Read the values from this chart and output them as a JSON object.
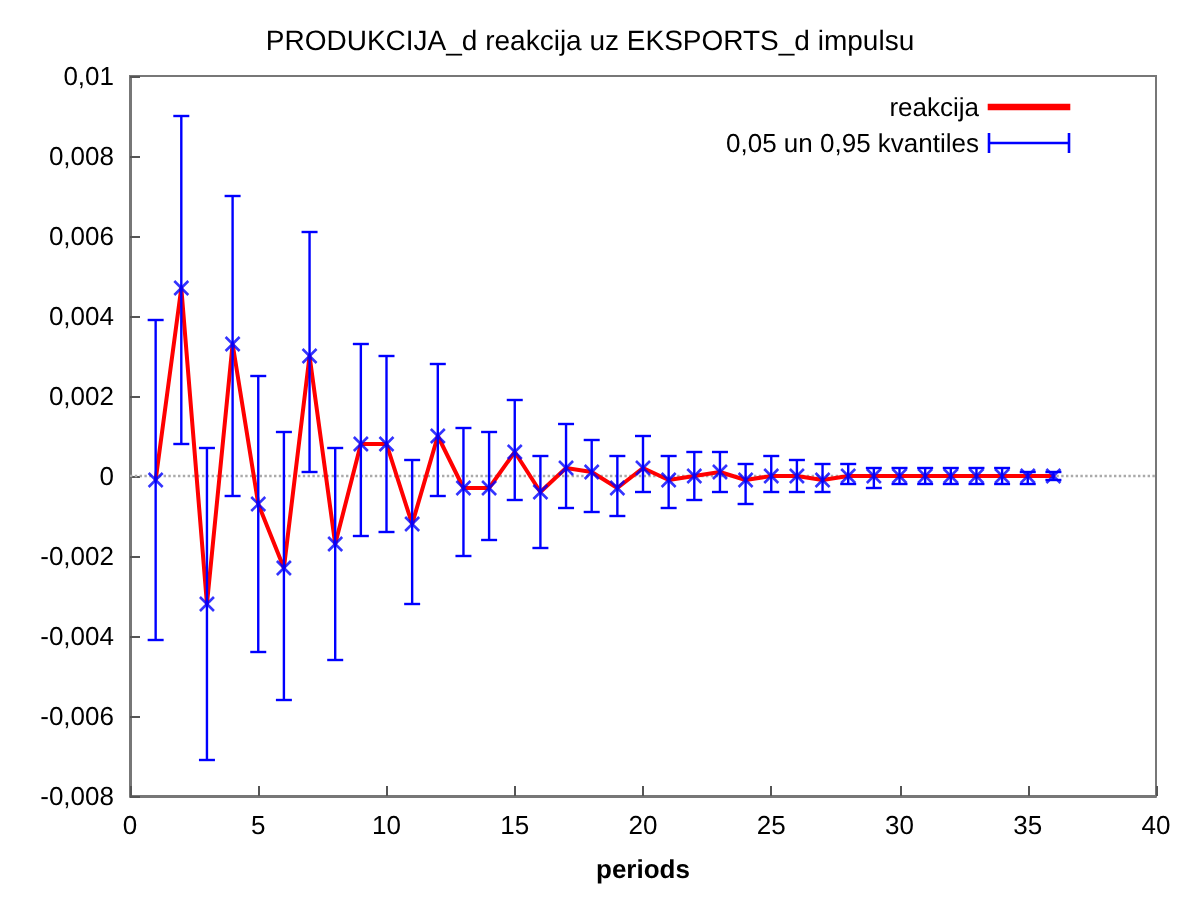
{
  "chart_data": {
    "type": "line",
    "title": "PRODUKCIJA_d reakcija uz EKSPORTS_d impulsu",
    "xlabel": "periods",
    "x": [
      1,
      2,
      3,
      4,
      5,
      6,
      7,
      8,
      9,
      10,
      11,
      12,
      13,
      14,
      15,
      16,
      17,
      18,
      19,
      20,
      21,
      22,
      23,
      24,
      25,
      26,
      27,
      28,
      29,
      30,
      31,
      32,
      33,
      34,
      35,
      36
    ],
    "series": [
      {
        "name": "reakcija",
        "color": "#ff0000",
        "values": [
          -0.0001,
          0.0047,
          -0.0032,
          0.0033,
          -0.0007,
          -0.0023,
          0.003,
          -0.0017,
          0.0008,
          0.0008,
          -0.0012,
          0.001,
          -0.0003,
          -0.0003,
          0.0006,
          -0.0004,
          0.0002,
          0.0001,
          -0.0003,
          0.0002,
          -0.0001,
          0,
          0.0001,
          -0.0001,
          0,
          0,
          -0.0001,
          0,
          0,
          0,
          0,
          0,
          0,
          0,
          0,
          0
        ]
      },
      {
        "name": "0,05 un 0,95 kvantiles",
        "type": "scatter",
        "marker": "cross",
        "color": "#0000ff",
        "values": [
          -0.0001,
          0.0047,
          -0.0032,
          0.0033,
          -0.0007,
          -0.0023,
          0.003,
          -0.0017,
          0.0008,
          0.0008,
          -0.0012,
          0.001,
          -0.0003,
          -0.0003,
          0.0006,
          -0.0004,
          0.0002,
          0.0001,
          -0.0003,
          0.0002,
          -0.0001,
          0,
          0.0001,
          -0.0001,
          0,
          0,
          -0.0001,
          0,
          0,
          0,
          0,
          0,
          0,
          0,
          0,
          0
        ],
        "errors": [
          [
            -0.0041,
            0.0039
          ],
          [
            0.0008,
            0.009
          ],
          [
            -0.0071,
            0.0007
          ],
          [
            -0.0005,
            0.007
          ],
          [
            -0.0044,
            0.0025
          ],
          [
            -0.0056,
            0.0011
          ],
          [
            0.0001,
            0.0061
          ],
          [
            -0.0046,
            0.0007
          ],
          [
            -0.0015,
            0.0033
          ],
          [
            -0.0014,
            0.003
          ],
          [
            -0.0032,
            0.0004
          ],
          [
            -0.0005,
            0.0028
          ],
          [
            -0.002,
            0.0012
          ],
          [
            -0.0016,
            0.0011
          ],
          [
            -0.0006,
            0.0019
          ],
          [
            -0.0018,
            0.0005
          ],
          [
            -0.0008,
            0.0013
          ],
          [
            -0.0009,
            0.0009
          ],
          [
            -0.001,
            0.0005
          ],
          [
            -0.0004,
            0.001
          ],
          [
            -0.0008,
            0.0005
          ],
          [
            -0.0006,
            0.0006
          ],
          [
            -0.0004,
            0.0006
          ],
          [
            -0.0007,
            0.0003
          ],
          [
            -0.0004,
            0.0005
          ],
          [
            -0.0004,
            0.0004
          ],
          [
            -0.0004,
            0.0003
          ],
          [
            -0.0002,
            0.0003
          ],
          [
            -0.0003,
            0.0002
          ],
          [
            -0.0002,
            0.0002
          ],
          [
            -0.0002,
            0.0002
          ],
          [
            -0.0002,
            0.0002
          ],
          [
            -0.0002,
            0.0002
          ],
          [
            -0.0002,
            0.0002
          ],
          [
            -0.0002,
            0.0001
          ],
          [
            -0.0001,
            0.0001
          ]
        ]
      }
    ],
    "xlim": [
      0,
      40
    ],
    "xticks": [
      0,
      5,
      10,
      15,
      20,
      25,
      30,
      35,
      40
    ],
    "ylim": [
      -0.008,
      0.01
    ],
    "yticks": [
      {
        "value": -0.008,
        "label": "-0,008"
      },
      {
        "value": -0.006,
        "label": "-0,006"
      },
      {
        "value": -0.004,
        "label": "-0,004"
      },
      {
        "value": -0.002,
        "label": "-0,002"
      },
      {
        "value": 0,
        "label": "0"
      },
      {
        "value": 0.002,
        "label": "0,002"
      },
      {
        "value": 0.004,
        "label": "0,004"
      },
      {
        "value": 0.006,
        "label": "0,006"
      },
      {
        "value": 0.008,
        "label": "0,008"
      },
      {
        "value": 0.01,
        "label": "0,01"
      }
    ],
    "ref_lines": [
      {
        "axis": "y",
        "value": 0,
        "color": "#aaaaaa",
        "line_style": "dotted"
      }
    ],
    "grid": false,
    "legend": "top right"
  }
}
